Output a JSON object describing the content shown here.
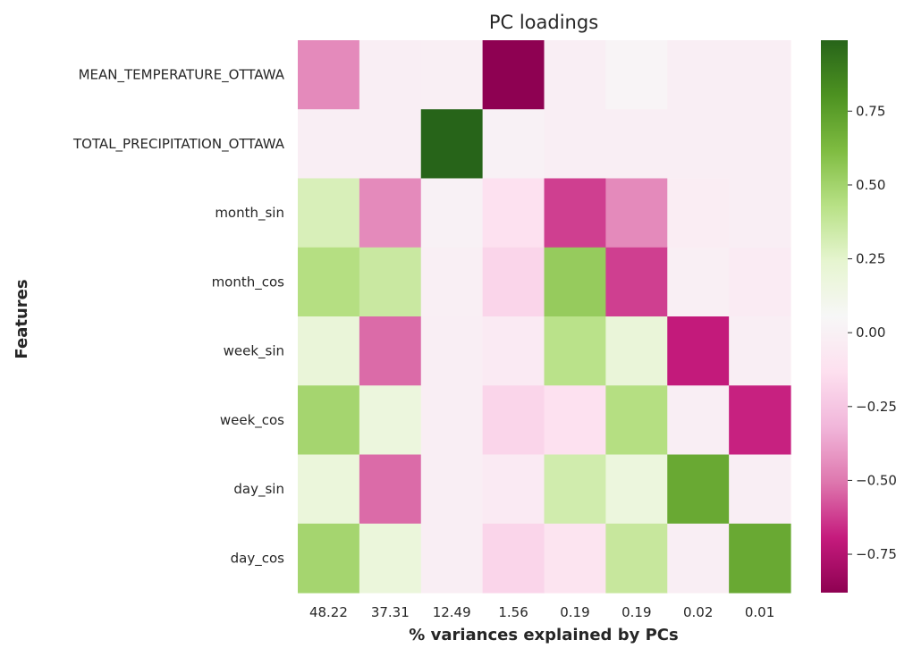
{
  "chart_data": {
    "type": "heatmap",
    "title": "PC loadings",
    "xlabel": "% variances explained by PCs",
    "ylabel": "Features",
    "x_categories": [
      "48.22",
      "37.31",
      "12.49",
      "1.56",
      "0.19",
      "0.19",
      "0.02",
      "0.01"
    ],
    "y_categories": [
      "MEAN_TEMPERATURE_OTTAWA",
      "TOTAL_PRECIPITATION_OTTAWA",
      "month_sin",
      "month_cos",
      "week_sin",
      "week_cos",
      "day_sin",
      "day_cos"
    ],
    "values": [
      [
        -0.45,
        -0.02,
        -0.01,
        -0.88,
        -0.02,
        0.03,
        -0.02,
        -0.02
      ],
      [
        -0.02,
        -0.02,
        0.99,
        0.01,
        -0.02,
        -0.02,
        -0.02,
        -0.02
      ],
      [
        0.3,
        -0.45,
        0.01,
        -0.12,
        -0.62,
        -0.45,
        -0.03,
        -0.02
      ],
      [
        0.44,
        0.36,
        -0.01,
        -0.18,
        0.54,
        -0.62,
        -0.01,
        -0.04
      ],
      [
        0.2,
        -0.53,
        -0.02,
        -0.05,
        0.42,
        0.2,
        -0.7,
        -0.02
      ],
      [
        0.49,
        0.18,
        -0.02,
        -0.18,
        -0.12,
        0.44,
        -0.02,
        -0.68
      ],
      [
        0.19,
        -0.53,
        -0.02,
        -0.05,
        0.33,
        0.18,
        0.7,
        -0.02
      ],
      [
        0.49,
        0.19,
        -0.02,
        -0.18,
        -0.1,
        0.37,
        -0.02,
        0.7
      ]
    ],
    "colorbar": {
      "cmap": "PiYG",
      "vmin": -0.88,
      "vmax": 0.99,
      "ticks": [
        -0.75,
        -0.5,
        -0.25,
        0.0,
        0.25,
        0.5,
        0.75
      ],
      "tick_labels": [
        "−0.75",
        "−0.50",
        "−0.25",
        "0.00",
        "0.25",
        "0.50",
        "0.75"
      ]
    }
  }
}
